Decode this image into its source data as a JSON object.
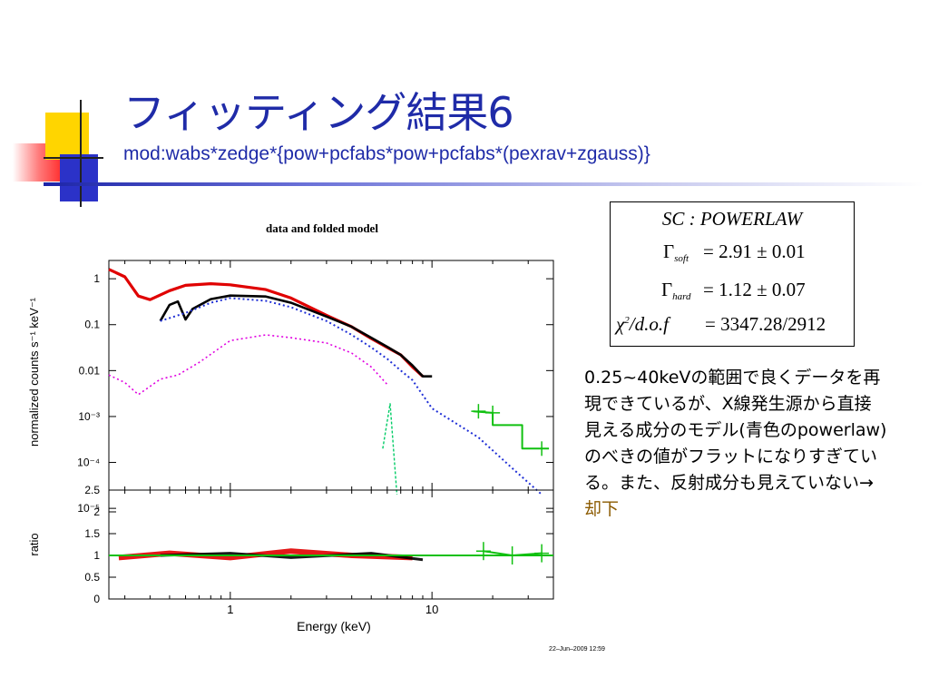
{
  "slide": {
    "title": "フィッティング結果6",
    "subtitle": "mod:wabs*zedge*{pow+pcfabs*pow+pcfabs*(pexrav+zgauss)}",
    "fit_box": {
      "row1": "SC : POWERLAW",
      "row2_symbol": "Γ",
      "row2_sub": "soft",
      "row2_value": "= 2.91 ± 0.01",
      "row3_symbol": "Γ",
      "row3_sub": "hard",
      "row3_value": "= 1.12 ± 0.07",
      "row4_chi": "χ",
      "row4_sup": "2",
      "row4_dof": "/d.o.f",
      "row4_value": "= 3347.28/2912"
    },
    "note_text": "0.25~40keVの範囲で良くデータを再現できているが、X線発生源から直接見える成分のモデル(青色のpowerlaw)のべきの値がフラットになりすぎている。また、反射成分も見えていない→",
    "note_link": "却下"
  },
  "chart_data": {
    "type": "line",
    "title": "data and folded model",
    "xlabel": "Energy (keV)",
    "top_ylabel": "normalized counts s⁻¹ keV⁻¹",
    "bottom_ylabel": "ratio",
    "footer": "22–Jun–2009 12:59",
    "x_scale": "log",
    "xlim": [
      0.25,
      40
    ],
    "x_ticks": [
      "1",
      "10"
    ],
    "top_y_scale": "log",
    "top_ylim": [
      2.5e-05,
      2.5
    ],
    "top_y_ticks": [
      "1",
      "0.1",
      "0.01",
      "10⁻³",
      "10⁻⁴",
      "10⁻⁵"
    ],
    "bottom_ylim": [
      0,
      2.5
    ],
    "bottom_y_ticks": [
      "2.5",
      "2",
      "1.5",
      "1",
      "0.5",
      "0"
    ],
    "series": [
      {
        "color": "#e00000",
        "points": [
          [
            0.25,
            1.6
          ],
          [
            0.3,
            1.1
          ],
          [
            0.35,
            0.42
          ],
          [
            0.4,
            0.35
          ],
          [
            0.5,
            0.55
          ],
          [
            0.6,
            0.72
          ],
          [
            0.8,
            0.78
          ],
          [
            1.0,
            0.74
          ],
          [
            1.5,
            0.58
          ],
          [
            2,
            0.38
          ],
          [
            3,
            0.16
          ],
          [
            4,
            0.09
          ],
          [
            5,
            0.05
          ],
          [
            6,
            0.032
          ],
          [
            7,
            0.022
          ],
          [
            8,
            0.012
          ],
          [
            9,
            0.0075
          ]
        ]
      },
      {
        "color": "#000000",
        "points": [
          [
            0.45,
            0.12
          ],
          [
            0.5,
            0.27
          ],
          [
            0.55,
            0.32
          ],
          [
            0.6,
            0.13
          ],
          [
            0.65,
            0.22
          ],
          [
            0.8,
            0.36
          ],
          [
            1.0,
            0.43
          ],
          [
            1.5,
            0.41
          ],
          [
            2,
            0.3
          ],
          [
            3,
            0.15
          ],
          [
            4,
            0.09
          ],
          [
            5,
            0.052
          ],
          [
            6,
            0.033
          ],
          [
            7,
            0.022
          ],
          [
            8,
            0.013
          ],
          [
            9,
            0.0075
          ],
          [
            10,
            0.0075
          ]
        ]
      },
      {
        "color": "#1f2fd6",
        "points": [
          [
            0.45,
            0.12
          ],
          [
            0.6,
            0.18
          ],
          [
            0.8,
            0.3
          ],
          [
            1.0,
            0.38
          ],
          [
            1.5,
            0.33
          ],
          [
            2,
            0.24
          ],
          [
            3,
            0.12
          ],
          [
            4,
            0.06
          ],
          [
            5,
            0.032
          ],
          [
            6,
            0.018
          ],
          [
            7,
            0.01
          ],
          [
            8,
            0.0062
          ],
          [
            10,
            0.0015
          ],
          [
            17,
            0.00035
          ],
          [
            25,
            7.5e-05
          ],
          [
            35,
            2e-05
          ]
        ]
      },
      {
        "color": "#e000e0",
        "points": [
          [
            0.25,
            0.008
          ],
          [
            0.3,
            0.0055
          ],
          [
            0.35,
            0.003
          ],
          [
            0.45,
            0.0065
          ],
          [
            0.55,
            0.008
          ],
          [
            0.7,
            0.015
          ],
          [
            1.0,
            0.045
          ],
          [
            1.5,
            0.06
          ],
          [
            2,
            0.052
          ],
          [
            3,
            0.04
          ],
          [
            4,
            0.024
          ],
          [
            5,
            0.012
          ],
          [
            6,
            0.005
          ]
        ]
      },
      {
        "color": "#00cc66",
        "points": [
          [
            5.7,
            0.0002
          ],
          [
            6.2,
            0.0019
          ],
          [
            6.7,
            2e-05
          ]
        ]
      },
      {
        "color": "#10c010",
        "points": [
          [
            16,
            0.0013
          ],
          [
            20,
            0.0012
          ],
          [
            20,
            0.00065
          ],
          [
            28,
            0.00065
          ],
          [
            28,
            0.0002
          ],
          [
            38,
            0.0002
          ]
        ]
      }
    ],
    "ratio_series": [
      {
        "color": "#e00000",
        "points": [
          [
            0.28,
            0.95
          ],
          [
            0.5,
            1.05
          ],
          [
            1,
            0.95
          ],
          [
            2,
            1.1
          ],
          [
            4,
            1.0
          ],
          [
            8,
            0.95
          ]
        ]
      },
      {
        "color": "#000000",
        "points": [
          [
            0.45,
            1.0
          ],
          [
            1,
            1.05
          ],
          [
            2,
            0.95
          ],
          [
            5,
            1.05
          ],
          [
            9,
            0.9
          ]
        ]
      },
      {
        "color": "#10c010",
        "points": [
          [
            0.25,
            1.0
          ],
          [
            40,
            1.0
          ]
        ]
      },
      {
        "color": "#10c010",
        "points": [
          [
            18,
            1.1
          ],
          [
            25,
            1.0
          ],
          [
            35,
            1.05
          ]
        ]
      }
    ]
  }
}
